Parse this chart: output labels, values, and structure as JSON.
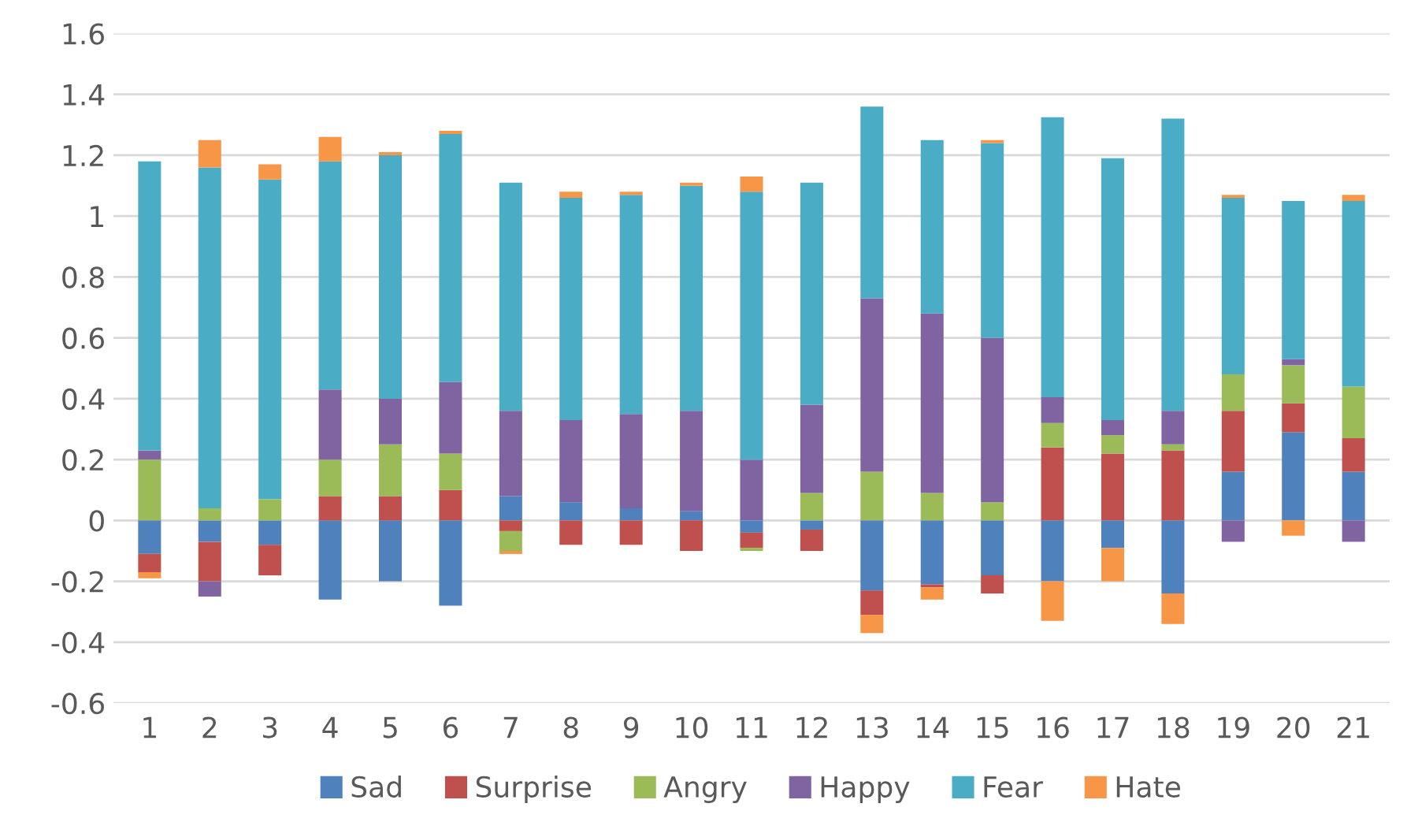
{
  "chart_data": {
    "type": "bar",
    "stacked": true,
    "categories": [
      "1",
      "2",
      "3",
      "4",
      "5",
      "6",
      "7",
      "8",
      "9",
      "10",
      "11",
      "12",
      "13",
      "14",
      "15",
      "16",
      "17",
      "18",
      "19",
      "20",
      "21"
    ],
    "series": [
      {
        "name": "Sad",
        "color": "#4f81bd",
        "values": [
          -0.11,
          -0.07,
          -0.08,
          -0.26,
          -0.2,
          -0.28,
          0.08,
          0.06,
          0.04,
          0.03,
          -0.04,
          -0.03,
          -0.23,
          -0.21,
          -0.18,
          -0.2,
          -0.09,
          -0.24,
          0.16,
          0.29,
          0.16
        ]
      },
      {
        "name": "Surprise",
        "color": "#c0504d",
        "values": [
          -0.06,
          -0.13,
          -0.1,
          0.08,
          0.08,
          0.1,
          -0.035,
          -0.08,
          -0.08,
          -0.1,
          -0.05,
          -0.07,
          -0.08,
          -0.01,
          -0.06,
          0.24,
          0.22,
          0.23,
          0.2,
          0.095,
          0.11
        ]
      },
      {
        "name": "Angry",
        "color": "#9bbb59",
        "values": [
          0.2,
          0.04,
          0.07,
          0.12,
          0.17,
          0.12,
          -0.065,
          null,
          null,
          null,
          -0.01,
          0.09,
          0.16,
          0.09,
          0.06,
          0.08,
          0.06,
          0.02,
          0.12,
          0.125,
          0.17
        ]
      },
      {
        "name": "Happy",
        "color": "#8064a2",
        "values": [
          0.03,
          -0.05,
          null,
          0.23,
          0.15,
          0.235,
          0.28,
          0.27,
          0.31,
          0.33,
          0.2,
          0.29,
          0.57,
          0.59,
          0.54,
          0.085,
          0.05,
          0.11,
          -0.07,
          0.02,
          -0.07
        ]
      },
      {
        "name": "Fear",
        "color": "#4bacc6",
        "values": [
          0.95,
          1.12,
          1.05,
          0.75,
          0.8,
          0.815,
          0.75,
          0.73,
          0.72,
          0.74,
          0.88,
          0.73,
          0.63,
          0.57,
          0.64,
          0.92,
          0.86,
          0.96,
          0.58,
          0.52,
          0.61
        ]
      },
      {
        "name": "Hate",
        "color": "#f79646",
        "values": [
          -0.02,
          0.09,
          0.05,
          0.08,
          0.01,
          0.01,
          -0.01,
          0.02,
          0.01,
          0.01,
          0.05,
          null,
          -0.06,
          -0.04,
          0.01,
          -0.13,
          -0.11,
          -0.1,
          0.01,
          -0.05,
          0.02
        ]
      }
    ],
    "ylim": [
      -0.6,
      1.6
    ],
    "yticks": [
      {
        "value": -0.6,
        "label": "-0.6"
      },
      {
        "value": -0.4,
        "label": "-0.4"
      },
      {
        "value": -0.2,
        "label": "-0.2"
      },
      0,
      0.2,
      0.4,
      0.6,
      0.8,
      1,
      1.2,
      1.4,
      1.6
    ],
    "grid": "y",
    "legend": "bottom"
  }
}
